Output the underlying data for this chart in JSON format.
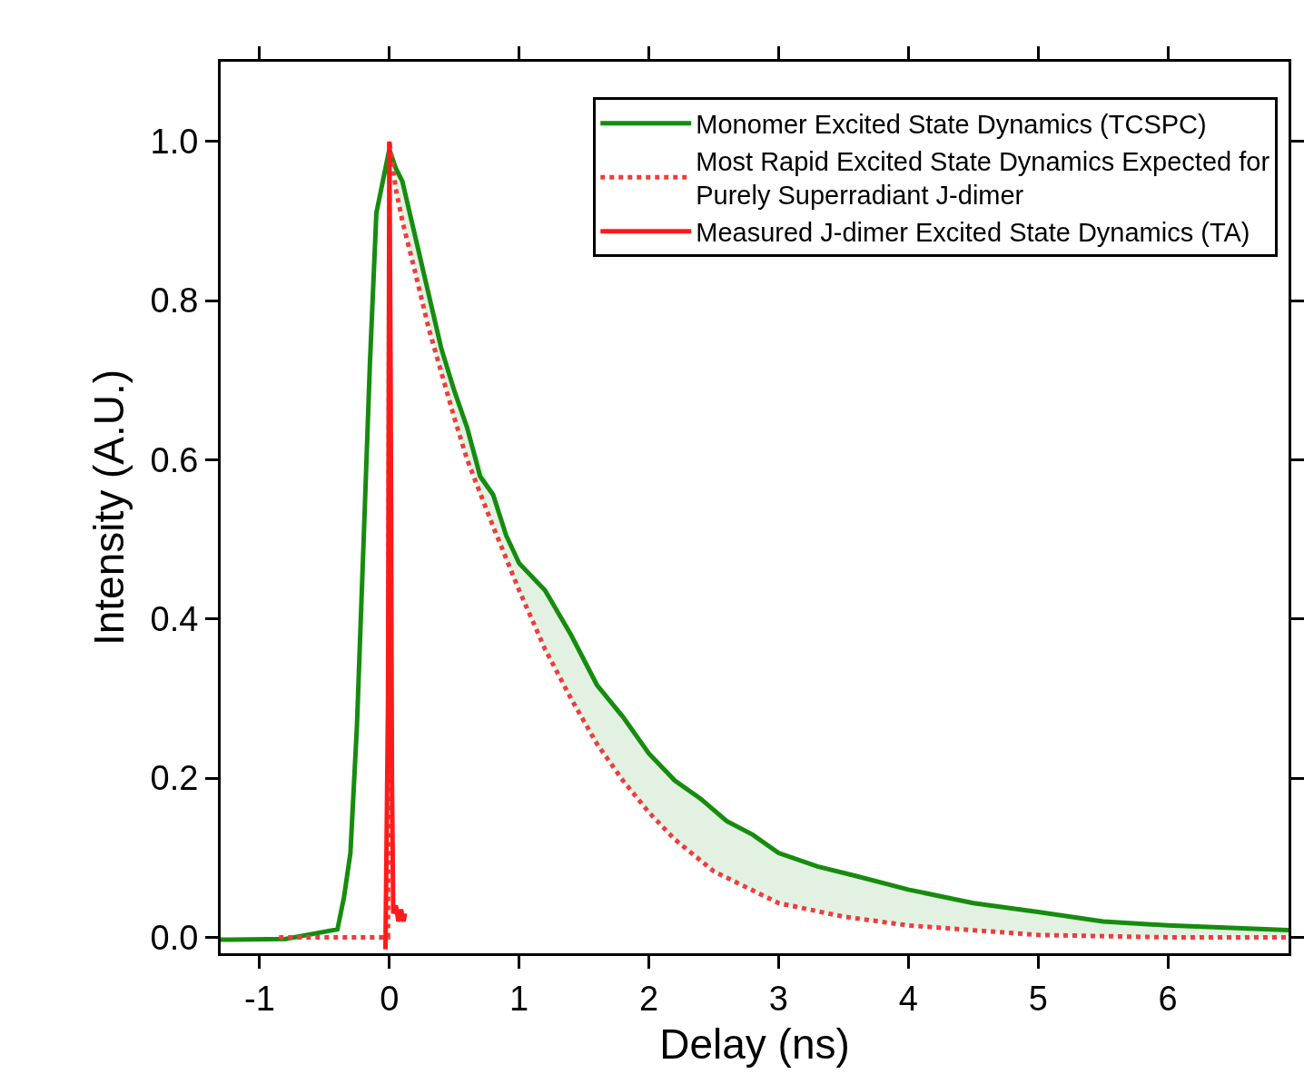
{
  "chart_data": {
    "type": "line",
    "xlabel": "Delay (ns)",
    "ylabel": "Intensity (A.U.)",
    "xlim": [
      -1.3,
      6.93
    ],
    "ylim": [
      -0.02,
      1.1
    ],
    "xticks": [
      -1,
      0,
      1,
      2,
      3,
      4,
      5,
      6
    ],
    "yticks": [
      {
        "value": 0,
        "label": "0.0"
      },
      {
        "value": 0.2,
        "label": "0.2"
      },
      {
        "value": 0.4,
        "label": "0.4"
      },
      {
        "value": 0.6,
        "label": "0.6"
      },
      {
        "value": 0.8,
        "label": "0.8"
      },
      {
        "value": 1.0,
        "label": "1.0"
      }
    ],
    "legend": "top right",
    "series": [
      {
        "name": "Monomer Excited State Dynamics (TCSPC)",
        "color": "#168c0e",
        "line_style": "solid",
        "x": [
          -1.3,
          -0.8,
          -0.4,
          -0.35,
          -0.3,
          -0.25,
          -0.2,
          -0.15,
          -0.1,
          -0.05,
          0,
          0.05,
          0.1,
          0.2,
          0.3,
          0.4,
          0.5,
          0.6,
          0.7,
          0.8,
          0.9,
          1.0,
          1.2,
          1.4,
          1.6,
          1.8,
          2.0,
          2.2,
          2.4,
          2.6,
          2.8,
          3.0,
          3.3,
          3.6,
          4.0,
          4.5,
          5.0,
          5.5,
          6.0,
          6.93
        ],
        "values": [
          -0.003,
          -0.002,
          0.01,
          0.05,
          0.106,
          0.265,
          0.49,
          0.72,
          0.91,
          0.95,
          0.99,
          0.966,
          0.95,
          0.88,
          0.81,
          0.74,
          0.687,
          0.64,
          0.579,
          0.556,
          0.505,
          0.47,
          0.436,
          0.38,
          0.317,
          0.277,
          0.231,
          0.197,
          0.174,
          0.146,
          0.129,
          0.106,
          0.089,
          0.077,
          0.06,
          0.043,
          0.032,
          0.02,
          0.015,
          0.009
        ]
      },
      {
        "name": "Most Rapid Excited State Dynamics Expected for Purely Superradiant J-dimer",
        "color": "#f03c3c",
        "line_style": "dotted",
        "x": [
          -0.85,
          -0.2,
          -0.01,
          0,
          0.05,
          0.1,
          0.2,
          0.3,
          0.4,
          0.5,
          0.6,
          0.8,
          1.0,
          1.2,
          1.4,
          1.6,
          1.8,
          2.0,
          2.2,
          2.5,
          3.0,
          3.5,
          4.0,
          5.0,
          6.0,
          6.93
        ],
        "values": [
          0,
          0,
          0,
          1.0,
          0.94,
          0.9,
          0.835,
          0.767,
          0.71,
          0.653,
          0.6,
          0.516,
          0.436,
          0.362,
          0.3,
          0.243,
          0.197,
          0.157,
          0.123,
          0.083,
          0.043,
          0.026,
          0.015,
          0.003,
          0,
          0
        ],
        "lower": [
          null,
          null,
          null,
          1.0,
          0.94,
          0.9,
          null,
          null,
          0.71,
          0.653,
          0.6,
          0.516,
          0.436,
          0.362,
          0.3,
          0.243,
          0.197,
          0.157,
          0.123,
          0.083,
          0.043,
          0.026,
          0.015,
          0.003,
          0,
          0
        ],
        "upper": [
          null,
          null,
          null,
          0.99,
          0.966,
          0.95,
          null,
          null,
          0.74,
          0.687,
          0.64,
          0.556,
          0.47,
          0.436,
          0.38,
          0.317,
          0.277,
          0.231,
          0.197,
          0.16,
          0.106,
          0.08,
          0.06,
          0.032,
          0.015,
          0.009
        ]
      },
      {
        "name": "Measured J-dimer Excited State Dynamics (TA)",
        "color": "#ff1a1a",
        "line_style": "solid",
        "x": [
          -0.03,
          -0.01,
          0,
          0.01,
          0.02,
          0.03,
          0.05,
          0.07,
          0.09,
          0.11,
          0.12
        ],
        "values": [
          -0.015,
          0.3,
          1.0,
          0.7,
          0.2,
          0.03,
          0.04,
          0.02,
          0.035,
          0.02,
          0.03
        ]
      }
    ]
  }
}
